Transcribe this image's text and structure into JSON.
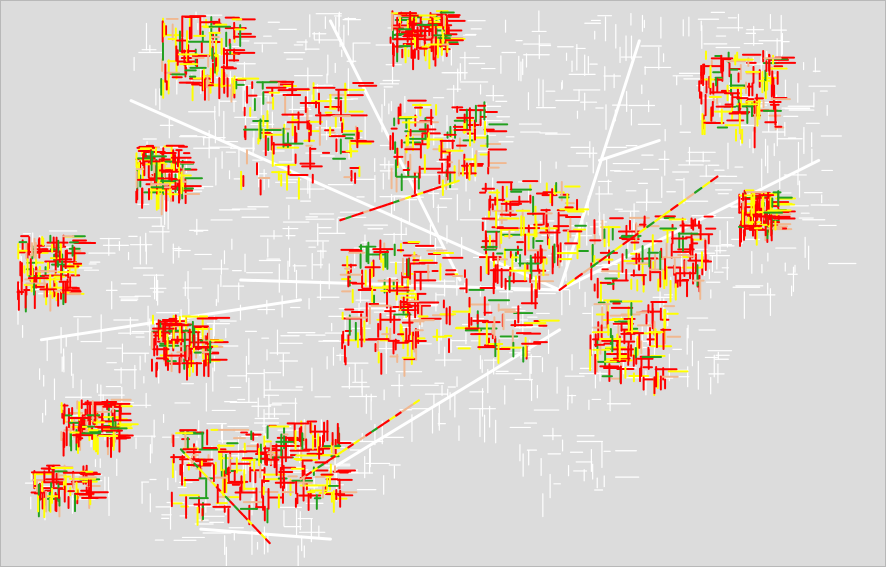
{
  "map": {
    "background_color": "#dcdcdc",
    "base_road_color": "#ffffff",
    "condition_colors": {
      "poor": "#ff0000",
      "fair": "#ffff00",
      "good": "#22a020",
      "marginal": "#f0b890"
    }
  }
}
